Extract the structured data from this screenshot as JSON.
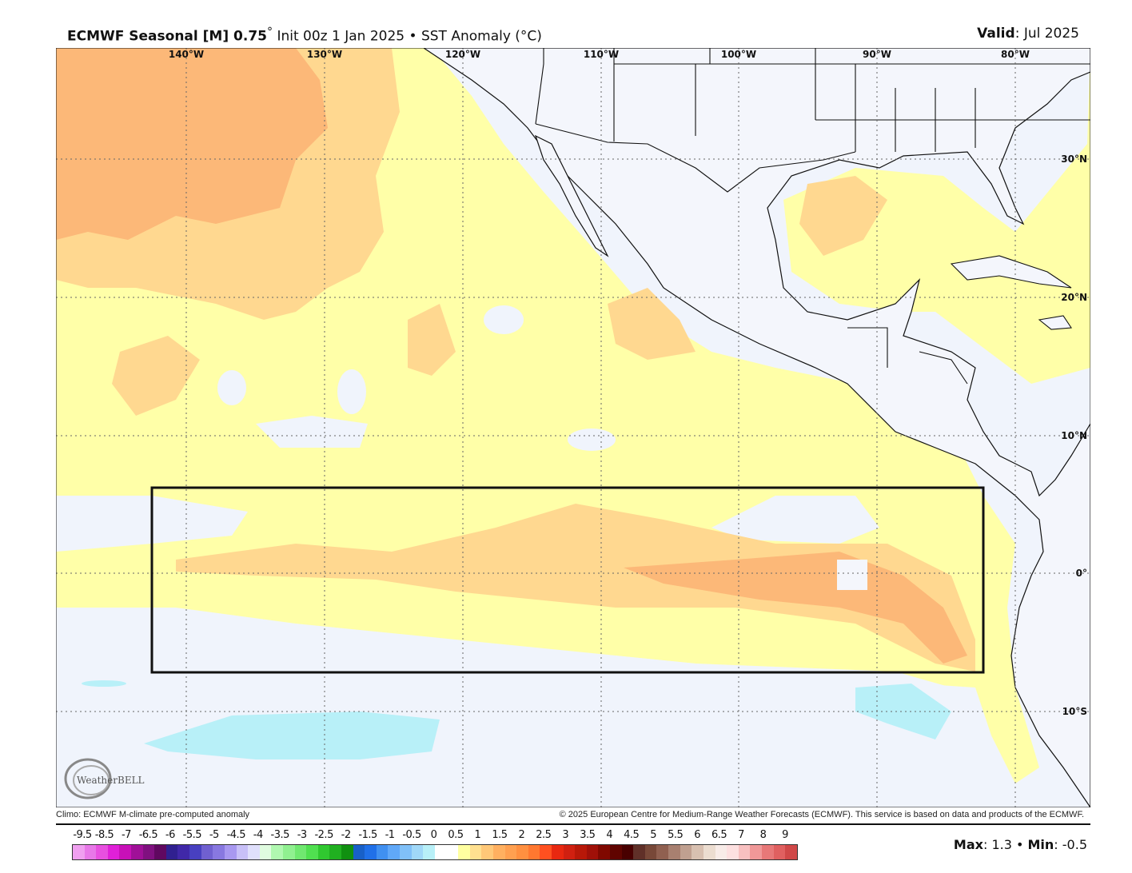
{
  "header": {
    "model": "ECMWF Seasonal [M] 0.75",
    "degree": "°",
    "init": "Init 00z 1 Jan 2025",
    "separator": "•",
    "variable": "SST Anomaly (°C)",
    "valid_label": "Valid",
    "valid_value": ": Jul 2025"
  },
  "map": {
    "lon_labels": [
      "140°W",
      "130°W",
      "120°W",
      "110°W",
      "100°W",
      "90°W",
      "80°W"
    ],
    "lat_labels": [
      "30°N",
      "20°N",
      "10°N",
      "0°",
      "10°S"
    ],
    "region_box": {
      "lon": [
        "-145",
        "-85"
      ],
      "lat": [
        "-7",
        "5"
      ]
    },
    "colors": {
      "ocean_neutral": "#f0f4fc",
      "weak_warm": "#ffffa8",
      "warm": "#ffd890",
      "warmer": "#fcb878",
      "cool": "#b8f0f8",
      "land": "#f4f6fc"
    },
    "logo": "WeatherBELL"
  },
  "footer": {
    "climo": "Climo: ECMWF M-climate pre-computed anomaly",
    "copyright": "© 2025 European Centre for Medium-Range Weather Forecasts (ECMWF). This service is based on data and products of the ECMWF."
  },
  "colorbar": {
    "labels": [
      "-9.5",
      "-8.5",
      "-7",
      "-6.5",
      "-6",
      "-5.5",
      "-5",
      "-4.5",
      "-4",
      "-3.5",
      "-3",
      "-2.5",
      "-2",
      "-1.5",
      "-1",
      "-0.5",
      "0",
      "0.5",
      "1",
      "1.5",
      "2",
      "2.5",
      "3",
      "3.5",
      "4",
      "4.5",
      "5",
      "5.5",
      "6",
      "6.5",
      "7",
      "8",
      "9"
    ],
    "colors": [
      "#f0a0f0",
      "#e878e8",
      "#e850e0",
      "#e020d8",
      "#c810b8",
      "#a01098",
      "#801080",
      "#600860",
      "#302090",
      "#4028a8",
      "#4840c0",
      "#7060d0",
      "#8878e0",
      "#a898f0",
      "#c8c0f8",
      "#e0e0fc",
      "#e0fce0",
      "#b0f8b0",
      "#90f090",
      "#70e870",
      "#50e050",
      "#30c830",
      "#20b020",
      "#109010",
      "#1860c8",
      "#2070e8",
      "#4090f0",
      "#60a8f8",
      "#80c0f8",
      "#a0d8f8",
      "#b8f0f8",
      "#ffffff",
      "#ffffff",
      "#ffffa0",
      "#ffe090",
      "#ffc878",
      "#ffb060",
      "#ffa050",
      "#ff9040",
      "#ff7830",
      "#ff5020",
      "#e82810",
      "#d02010",
      "#b81808",
      "#a01008",
      "#800800",
      "#600400",
      "#480000",
      "#603028",
      "#784838",
      "#906050",
      "#a88070",
      "#c0a090",
      "#d8c0b0",
      "#ecddd0",
      "#f8ece8",
      "#fde0e0",
      "#f8c0c0",
      "#f09898",
      "#e87878",
      "#e06060",
      "#d04848"
    ]
  },
  "stats": {
    "max_label": "Max",
    "max_value": ": 1.3",
    "sep": " • ",
    "min_label": "Min",
    "min_value": ": -0.5"
  }
}
